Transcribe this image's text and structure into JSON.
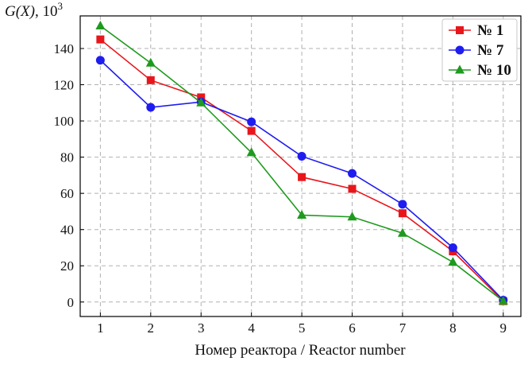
{
  "chart_data": {
    "type": "line",
    "ylabel_var": "G(X)",
    "ylabel_unit": ", 10",
    "ylabel_exp": "3",
    "xlabel": "Номер реактора / Reactor number",
    "x": [
      1,
      2,
      3,
      4,
      5,
      6,
      7,
      8,
      9
    ],
    "xlim": [
      0.6,
      9.35
    ],
    "ylim": [
      -8,
      158
    ],
    "yticks": [
      0,
      20,
      40,
      60,
      80,
      100,
      120,
      140
    ],
    "grid": true,
    "legend_position": "top-right",
    "series": [
      {
        "name": "№ 1",
        "color": "#e8161b",
        "marker": "square",
        "values": [
          145,
          122.5,
          113,
          94.5,
          69,
          62.5,
          49,
          28,
          0.5
        ]
      },
      {
        "name": "№ 7",
        "color": "#1f1cf0",
        "marker": "circle",
        "values": [
          133.5,
          107.5,
          110.5,
          99.5,
          80.5,
          71,
          54,
          30,
          1
        ]
      },
      {
        "name": "№ 10",
        "color": "#1e9a1e",
        "marker": "triangle",
        "values": [
          152.5,
          132,
          110,
          82.5,
          48,
          47,
          38,
          22,
          0.5
        ]
      }
    ]
  }
}
